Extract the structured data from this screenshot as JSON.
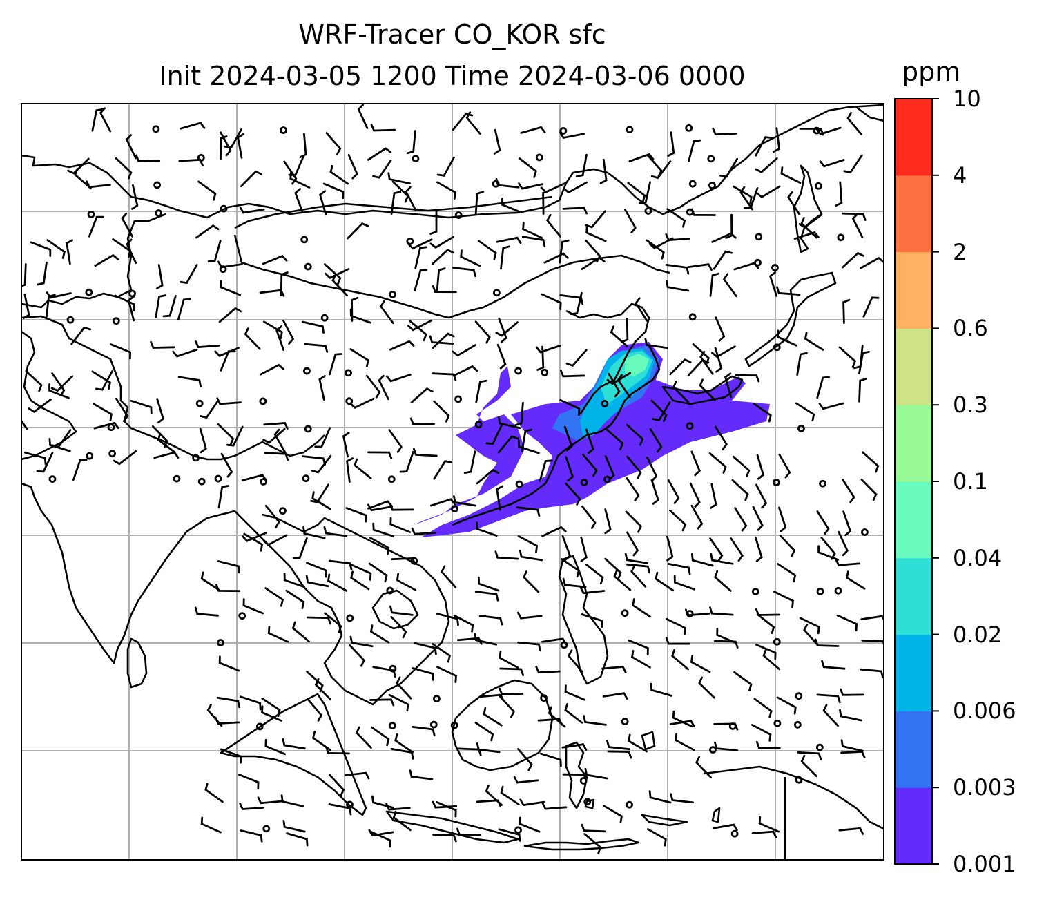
{
  "title": {
    "line1": "WRF-Tracer CO_KOR sfc",
    "line2": "Init 2024-03-05 1200 Time 2024-03-06 0000"
  },
  "colorbar": {
    "unit": "ppm",
    "levels": [
      "0.001",
      "0.003",
      "0.006",
      "0.02",
      "0.04",
      "0.1",
      "0.3",
      "0.6",
      "2",
      "4",
      "10"
    ],
    "colors": [
      "#652bfb",
      "#3374f4",
      "#00b4ea",
      "#2edfd6",
      "#69fbbd",
      "#98fa96",
      "#cee286",
      "#feb163",
      "#ff7040",
      "#ff2c1e"
    ]
  },
  "map": {
    "gridlines": true,
    "plume_colors": {
      "low": "#652bfb",
      "mid": "#3374f4",
      "high": "#00b4ea",
      "peak": "#2edfd6",
      "top": "#69fbbd"
    }
  }
}
